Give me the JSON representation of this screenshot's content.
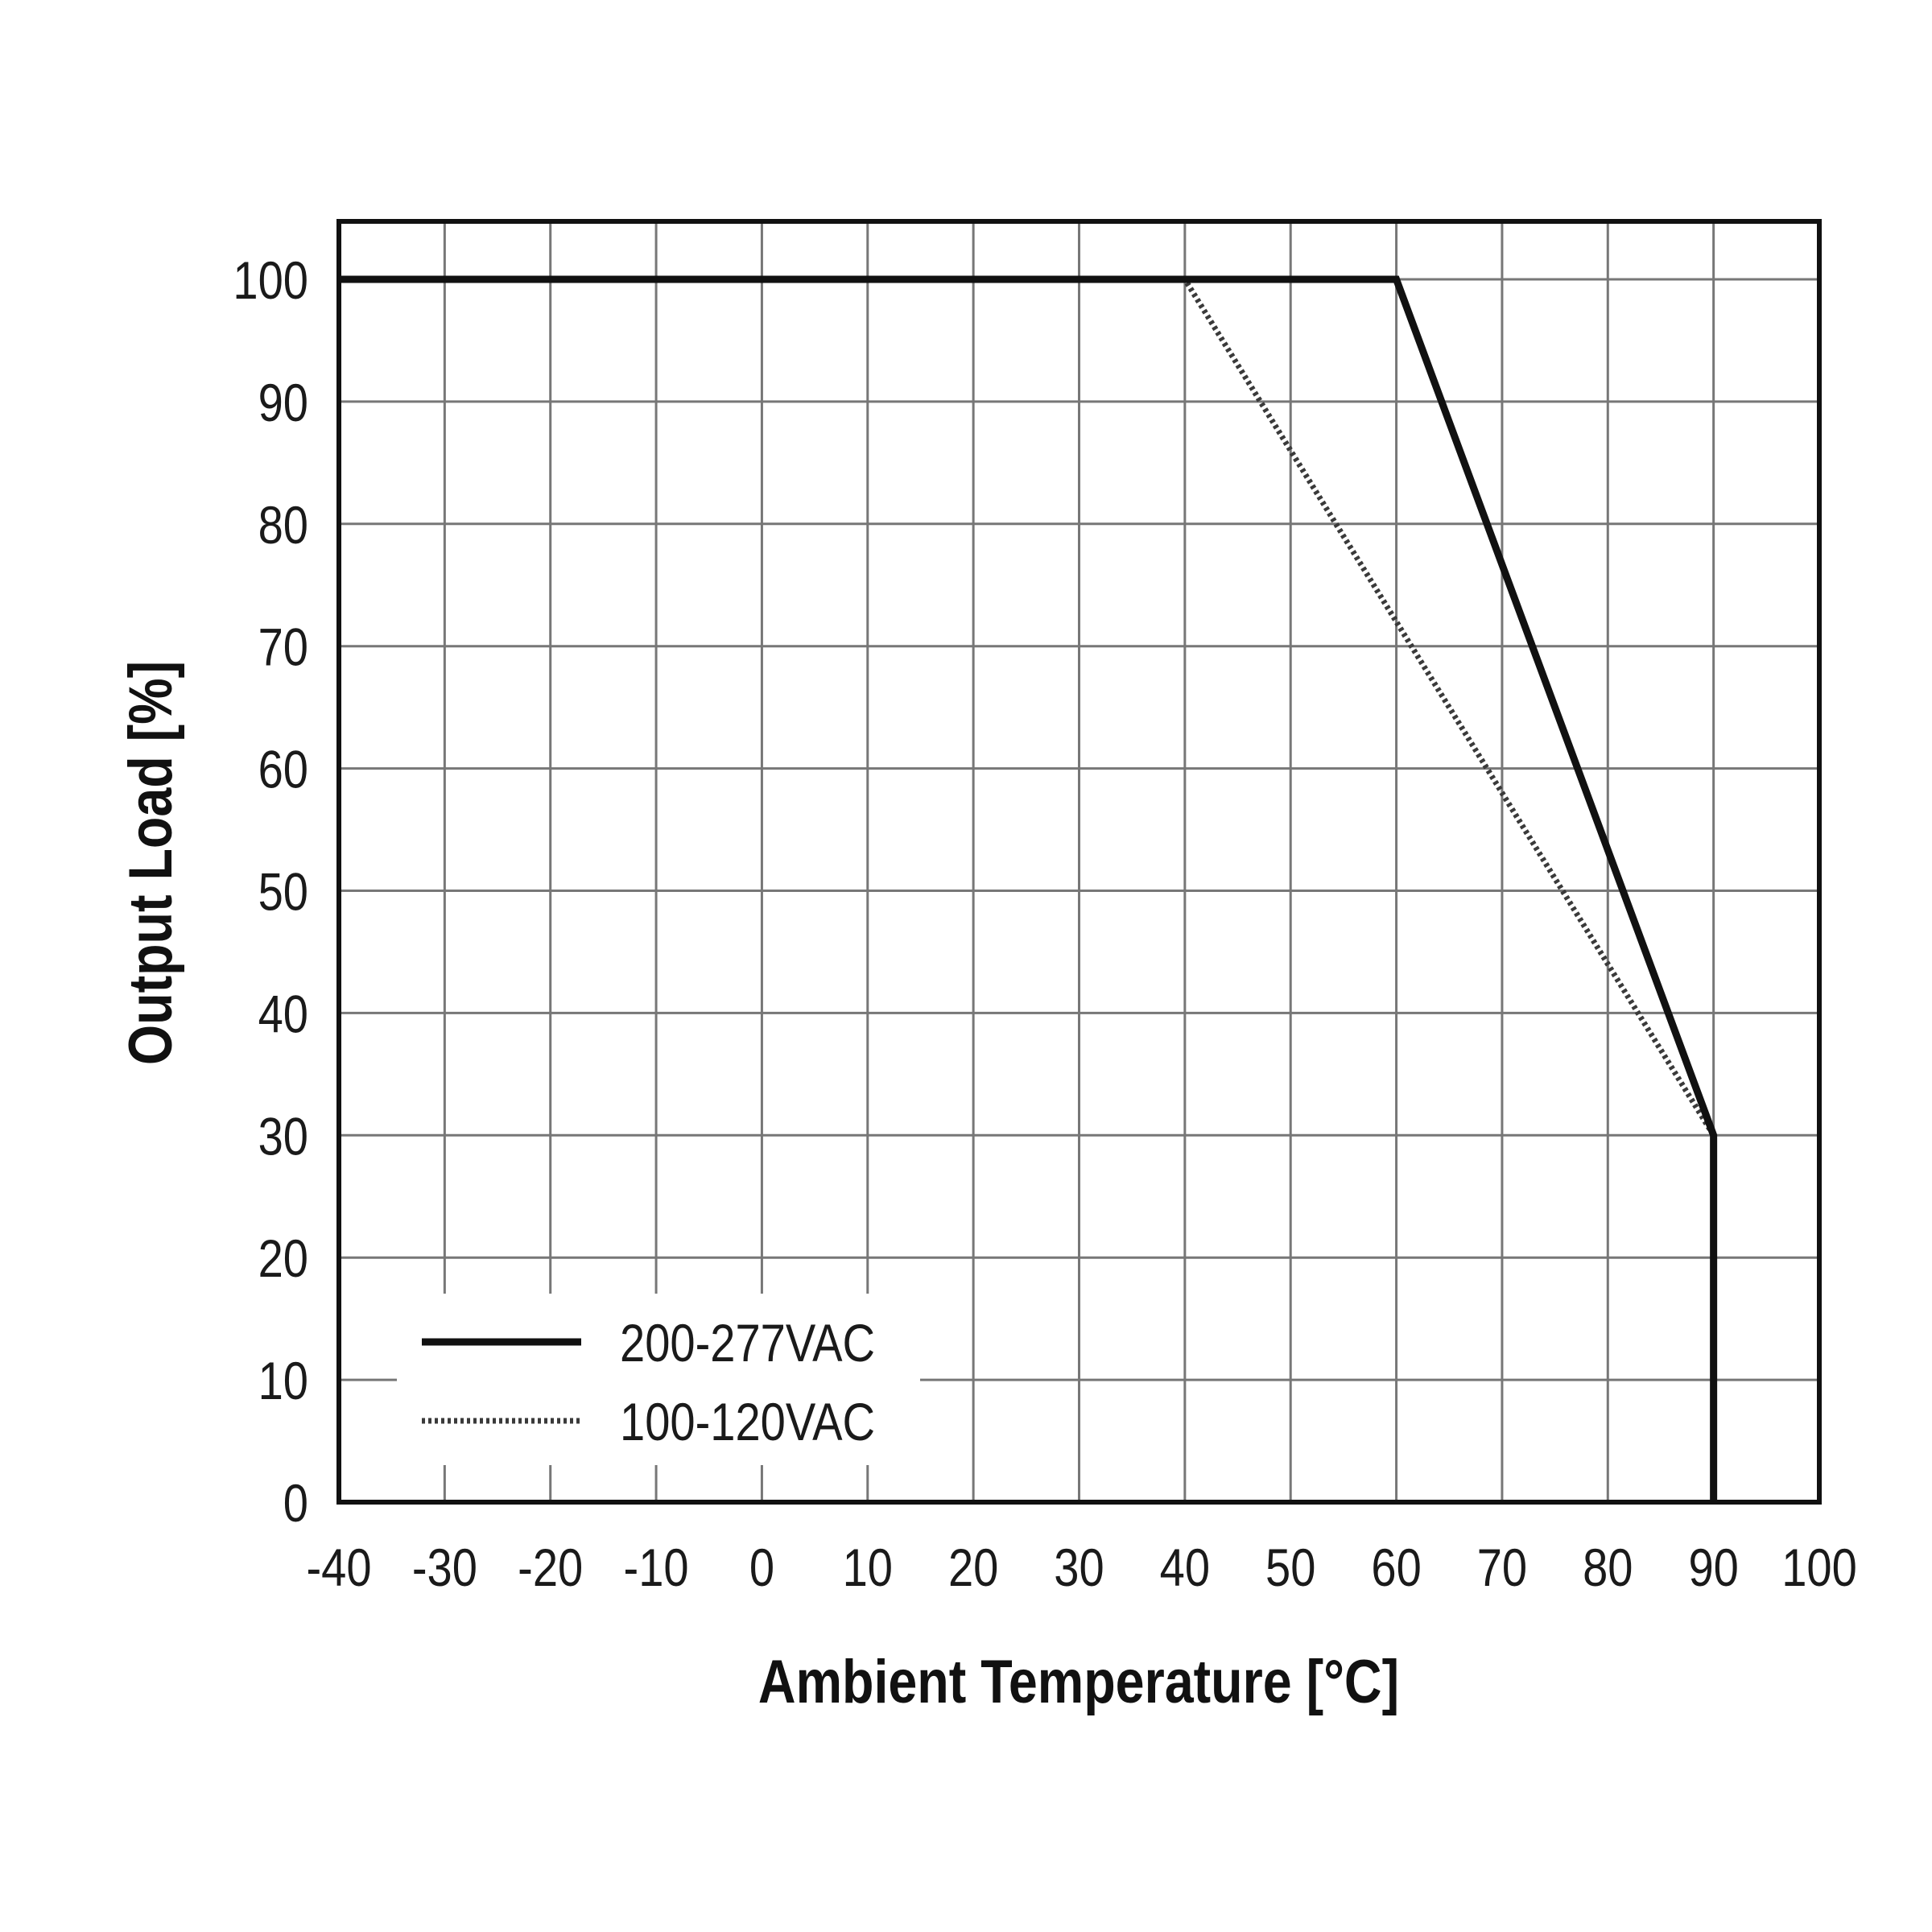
{
  "chart_data": {
    "type": "line",
    "title": "",
    "xlabel": "Ambient Temperature [°C]",
    "ylabel": "Output Load [%]",
    "xlim": [
      -40,
      100
    ],
    "ylim": [
      0,
      104.7
    ],
    "xticks": [
      -40,
      -30,
      -20,
      -10,
      0,
      10,
      20,
      30,
      40,
      50,
      60,
      70,
      80,
      90,
      100
    ],
    "yticks": [
      0,
      10,
      20,
      30,
      40,
      50,
      60,
      70,
      80,
      90,
      100
    ],
    "grid": true,
    "legend_position": "bottom-left",
    "series": [
      {
        "name": "200-277VAC",
        "style": "solid",
        "color": "#111111",
        "x": [
          -40,
          60,
          90,
          90
        ],
        "y": [
          100,
          100,
          30,
          0
        ]
      },
      {
        "name": "100-120VAC",
        "style": "dotted",
        "color": "#333333",
        "x": [
          -40,
          40,
          90,
          90
        ],
        "y": [
          100,
          100,
          30,
          0
        ]
      }
    ]
  }
}
